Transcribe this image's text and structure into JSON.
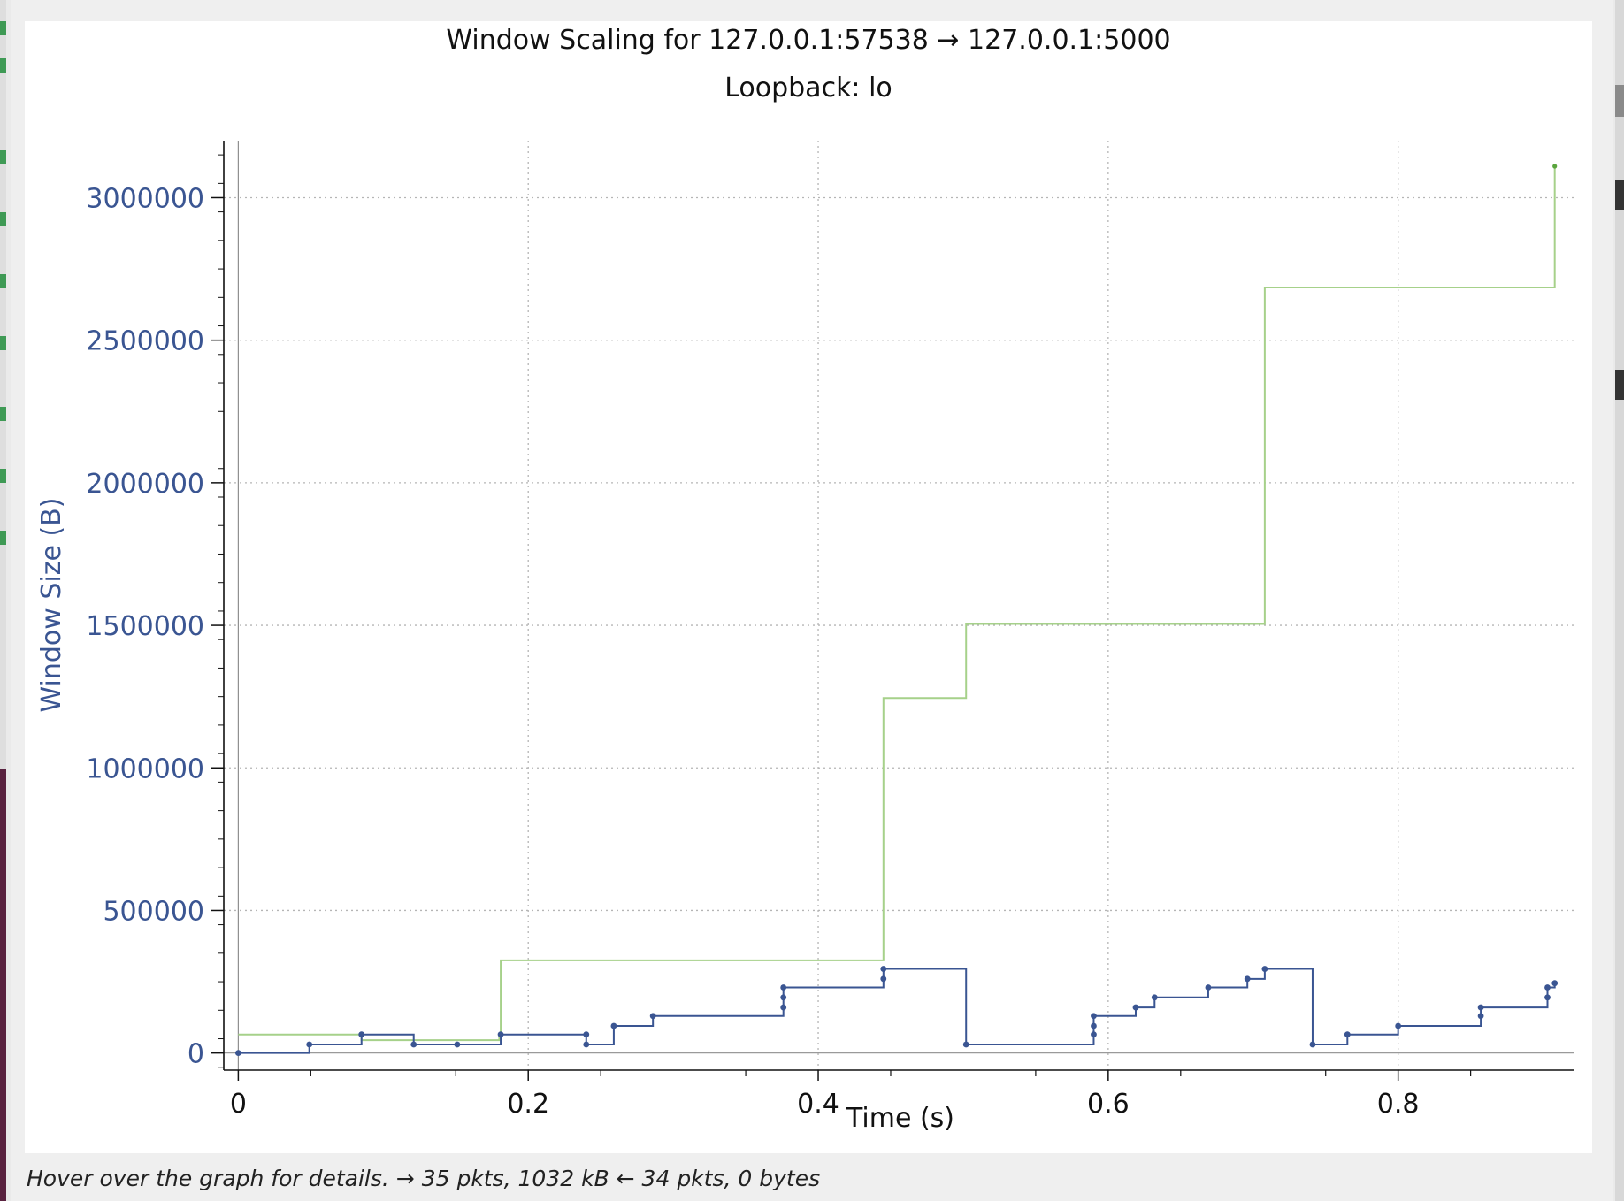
{
  "window": {
    "title": "Window Scaling for 127.0.0.1:57538 → 127.0.0.1:5000",
    "subtitle": "Loopback: lo"
  },
  "status_bar": {
    "text": "Hover over the graph for details. → 35 pkts, 1032 kB ← 34 pkts, 0 bytes"
  },
  "colors": {
    "window_series": "#3a5592",
    "rcv_series": "#a6d18a",
    "axis_label": "#3a5592",
    "grid": "#b5b5b5"
  },
  "chart_data": {
    "type": "line",
    "title": "Window Scaling for 127.0.0.1:57538 → 127.0.0.1:5000",
    "subtitle": "Loopback: lo",
    "xlabel": "Time (s)",
    "ylabel": "Window Size (B)",
    "xlim": [
      -0.01,
      0.921
    ],
    "ylim": [
      -60000,
      3200000
    ],
    "xticks": [
      {
        "value": 0,
        "label": "0"
      },
      {
        "value": 0.2,
        "label": "0.2"
      },
      {
        "value": 0.4,
        "label": "0.4"
      },
      {
        "value": 0.6,
        "label": "0.6"
      },
      {
        "value": 0.8,
        "label": "0.8"
      }
    ],
    "yticks": [
      {
        "value": 0,
        "label": "0"
      },
      {
        "value": 500000,
        "label": "500000"
      },
      {
        "value": 1000000,
        "label": "1000000"
      },
      {
        "value": 1500000,
        "label": "1500000"
      },
      {
        "value": 2000000,
        "label": "2000000"
      },
      {
        "value": 2500000,
        "label": "2500000"
      },
      {
        "value": 3000000,
        "label": "3000000"
      }
    ],
    "grid": true,
    "series": [
      {
        "color": "#a6d18a",
        "step": true,
        "markers": false,
        "points": [
          [
            0,
            65000
          ],
          [
            0.085,
            45000
          ],
          [
            0.121,
            45000
          ],
          [
            0.18,
            65000
          ],
          [
            0.181,
            325000
          ],
          [
            0.445,
            1245000
          ],
          [
            0.502,
            1505000
          ],
          [
            0.708,
            2685000
          ],
          [
            0.908,
            3110000
          ]
        ]
      },
      {
        "color": "#3a5592",
        "step": true,
        "markers": true,
        "points": [
          [
            0,
            0
          ],
          [
            0.049,
            30000
          ],
          [
            0.085,
            65000
          ],
          [
            0.121,
            30000
          ],
          [
            0.151,
            30000
          ],
          [
            0.181,
            65000
          ],
          [
            0.24,
            65000
          ],
          [
            0.24,
            30000
          ],
          [
            0.259,
            95000
          ],
          [
            0.286,
            130000
          ],
          [
            0.376,
            160000
          ],
          [
            0.376,
            195000
          ],
          [
            0.376,
            230000
          ],
          [
            0.445,
            260000
          ],
          [
            0.445,
            295000
          ],
          [
            0.502,
            30000
          ],
          [
            0.59,
            65000
          ],
          [
            0.59,
            95000
          ],
          [
            0.59,
            130000
          ],
          [
            0.619,
            160000
          ],
          [
            0.632,
            195000
          ],
          [
            0.669,
            230000
          ],
          [
            0.696,
            260000
          ],
          [
            0.708,
            295000
          ],
          [
            0.741,
            30000
          ],
          [
            0.765,
            65000
          ],
          [
            0.8,
            95000
          ],
          [
            0.857,
            130000
          ],
          [
            0.857,
            160000
          ],
          [
            0.903,
            195000
          ],
          [
            0.903,
            230000
          ],
          [
            0.908,
            245000
          ]
        ]
      }
    ]
  }
}
